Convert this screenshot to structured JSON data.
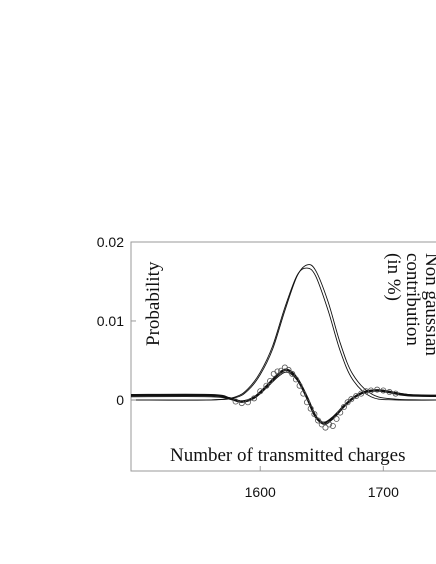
{
  "chart_data": {
    "type": "line",
    "title": "",
    "xlabel": "Number of transmitted charges",
    "ylabel": "Probability",
    "y2label_lines": [
      "Non gaussian",
      "contribution",
      "(in %)"
    ],
    "xlim": [
      1495,
      1755
    ],
    "ylim": [
      -0.009,
      0.02
    ],
    "x_ticks": [
      1600,
      1700
    ],
    "x_tick_labels": [
      "1600",
      "1700"
    ],
    "y_ticks": [
      0.02,
      0.01,
      0
    ],
    "y_tick_labels": [
      "0.02",
      "0.01",
      "0"
    ],
    "grid": false,
    "series": [
      {
        "style": "thin line",
        "x": [
          1495,
          1560,
          1580,
          1590,
          1600,
          1610,
          1620,
          1630,
          1638,
          1645,
          1655,
          1665,
          1675,
          1690,
          1710,
          1755
        ],
        "y": [
          0,
          0,
          0.0003,
          0.0012,
          0.0032,
          0.0064,
          0.0113,
          0.0157,
          0.0171,
          0.0164,
          0.0125,
          0.0072,
          0.0033,
          0.0008,
          0.0001,
          0
        ]
      },
      {
        "style": "thin line",
        "x": [
          1495,
          1560,
          1580,
          1590,
          1600,
          1610,
          1620,
          1630,
          1638,
          1645,
          1655,
          1665,
          1675,
          1690,
          1710,
          1755
        ],
        "y": [
          0,
          0,
          0.0004,
          0.0014,
          0.0035,
          0.0068,
          0.0117,
          0.0158,
          0.0167,
          0.0157,
          0.0114,
          0.0062,
          0.0026,
          0.0004,
          0,
          0
        ]
      },
      {
        "style": "thick line",
        "x": [
          1495,
          1560,
          1575,
          1585,
          1595,
          1605,
          1615,
          1622,
          1630,
          1638,
          1645,
          1652,
          1660,
          1668,
          1676,
          1685,
          1695,
          1705,
          1720,
          1755
        ],
        "y": [
          0.0006,
          0.0006,
          0.0002,
          -0.0002,
          0.0003,
          0.0017,
          0.0033,
          0.0038,
          0.0027,
          0.0003,
          -0.0021,
          -0.0029,
          -0.0021,
          -0.0008,
          0.0003,
          0.001,
          0.0012,
          0.001,
          0.0006,
          0.0005
        ]
      },
      {
        "style": "thin line",
        "x": [
          1495,
          1560,
          1575,
          1585,
          1595,
          1605,
          1615,
          1622,
          1630,
          1638,
          1645,
          1652,
          1660,
          1668,
          1676,
          1685,
          1695,
          1705,
          1720,
          1755
        ],
        "y": [
          0.0004,
          0.0004,
          0.0001,
          -0.0003,
          0.0002,
          0.0015,
          0.003,
          0.0035,
          0.0025,
          0.0002,
          -0.0022,
          -0.0031,
          -0.0023,
          -0.0009,
          0.0002,
          0.001,
          0.0013,
          0.0011,
          0.0007,
          0.0003
        ]
      },
      {
        "style": "open circles",
        "x": [
          1580,
          1585,
          1590,
          1595,
          1600,
          1605,
          1608,
          1611,
          1614,
          1617,
          1620,
          1623,
          1626,
          1629,
          1632,
          1635,
          1638,
          1641,
          1644,
          1647,
          1650,
          1653,
          1656,
          1659,
          1662,
          1665,
          1668,
          1671,
          1674,
          1678,
          1682,
          1686,
          1690,
          1695,
          1700,
          1705,
          1710
        ],
        "y": [
          -0.0002,
          -0.0004,
          -0.0003,
          0.0002,
          0.0011,
          0.0018,
          0.0024,
          0.0033,
          0.0036,
          0.0037,
          0.0041,
          0.0038,
          0.0033,
          0.0026,
          0.0018,
          0.0008,
          -0.0003,
          -0.0011,
          -0.0018,
          -0.0026,
          -0.0031,
          -0.0035,
          -0.0031,
          -0.0033,
          -0.0024,
          -0.0016,
          -0.0009,
          -0.0003,
          0.0001,
          0.0005,
          0.0008,
          0.0011,
          0.0012,
          0.0013,
          0.0012,
          0.001,
          0.0008
        ]
      }
    ]
  }
}
